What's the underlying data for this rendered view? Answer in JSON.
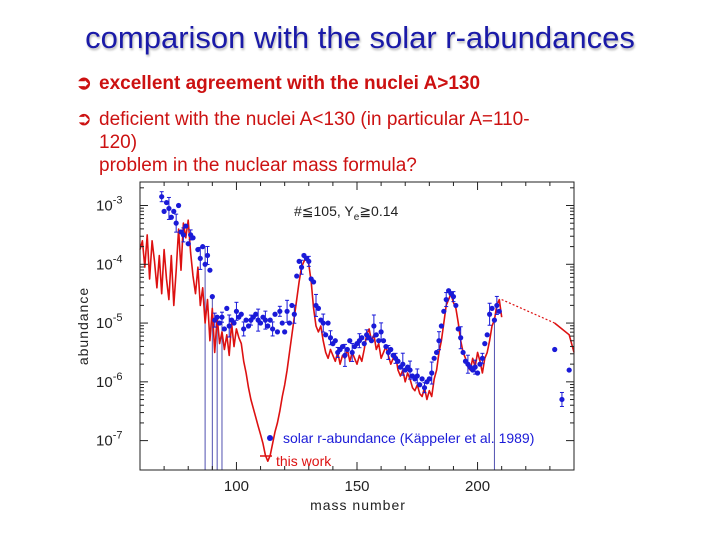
{
  "slide": {
    "title": "comparison with the solar r-abundances",
    "bullet1": "excellent agreement with the nuclei A>130",
    "bullet2_line1": "deficient with the nuclei A<130 (in particular A=110-",
    "bullet2_line2": "120)",
    "bullet2_line3": "problem in the nuclear mass formula?",
    "bullet_icon": "right-arrow-circle-icon"
  },
  "colors": {
    "title": "#1a1aa8",
    "text": "#cc1111",
    "solar": "#1a1ad8",
    "model": "#dd1111"
  },
  "chart_data": {
    "type": "line",
    "xlabel": "mass number",
    "ylabel": "abundance",
    "xlim": [
      60,
      240
    ],
    "ylim_log10": [
      -7.5,
      -2.6
    ],
    "log_y": true,
    "x_ticks": [
      "100",
      "150",
      "200"
    ],
    "y_ticks": [
      "10^-3",
      "10^-4",
      "10^-5",
      "10^-6",
      "10^-7"
    ],
    "annotation": "#≦105, Y",
    "annotation_sub": "e",
    "annotation_tail": "≧0.14",
    "legend_position": "bottom-right",
    "series": [
      {
        "name": "solar r-abundance (Käppeler et al. 1989)",
        "marker": "dot",
        "points": [
          [
            69,
            -2.85
          ],
          [
            70,
            -3.1
          ],
          [
            71,
            -2.95
          ],
          [
            72,
            -3.05
          ],
          [
            73,
            -3.2
          ],
          [
            74,
            -3.1
          ],
          [
            75,
            -3.3
          ],
          [
            76,
            -3.0
          ],
          [
            77,
            -3.45
          ],
          [
            78,
            -3.5
          ],
          [
            79,
            -3.35
          ],
          [
            80,
            -3.65
          ],
          [
            81,
            -3.5
          ],
          [
            82,
            -3.55
          ],
          [
            84,
            -3.75
          ],
          [
            85,
            -3.9
          ],
          [
            86,
            -3.7
          ],
          [
            87,
            -4.0
          ],
          [
            88,
            -3.85
          ],
          [
            89,
            -4.1
          ],
          [
            90,
            -4.55
          ],
          [
            91,
            -4.95
          ],
          [
            92,
            -4.9
          ],
          [
            93,
            -5.0
          ],
          [
            94,
            -4.9
          ],
          [
            95,
            -5.1
          ],
          [
            96,
            -4.75
          ],
          [
            97,
            -5.05
          ],
          [
            98,
            -4.95
          ],
          [
            99,
            -5.0
          ],
          [
            100,
            -4.8
          ],
          [
            101,
            -4.9
          ],
          [
            102,
            -4.85
          ],
          [
            103,
            -5.1
          ],
          [
            104,
            -4.95
          ],
          [
            105,
            -5.05
          ],
          [
            106,
            -4.95
          ],
          [
            107,
            -4.9
          ],
          [
            108,
            -4.85
          ],
          [
            109,
            -4.95
          ],
          [
            110,
            -5.0
          ],
          [
            111,
            -4.9
          ],
          [
            112,
            -4.95
          ],
          [
            113,
            -5.05
          ],
          [
            114,
            -4.95
          ],
          [
            115,
            -5.1
          ],
          [
            116,
            -4.85
          ],
          [
            117,
            -5.15
          ],
          [
            118,
            -4.8
          ],
          [
            119,
            -5.0
          ],
          [
            120,
            -5.15
          ],
          [
            121,
            -4.8
          ],
          [
            122,
            -5.0
          ],
          [
            123,
            -4.7
          ],
          [
            124,
            -4.85
          ],
          [
            125,
            -4.2
          ],
          [
            126,
            -3.95
          ],
          [
            127,
            -4.05
          ],
          [
            128,
            -3.85
          ],
          [
            129,
            -3.9
          ],
          [
            130,
            -3.95
          ],
          [
            131,
            -4.25
          ],
          [
            132,
            -4.3
          ],
          [
            133,
            -4.7
          ],
          [
            134,
            -4.75
          ],
          [
            135,
            -4.95
          ],
          [
            136,
            -5.0
          ],
          [
            137,
            -5.2
          ],
          [
            138,
            -5.0
          ],
          [
            139,
            -5.25
          ],
          [
            140,
            -5.35
          ],
          [
            141,
            -5.3
          ],
          [
            142,
            -5.5
          ],
          [
            143,
            -5.45
          ],
          [
            144,
            -5.4
          ],
          [
            145,
            -5.55
          ],
          [
            146,
            -5.45
          ],
          [
            147,
            -5.3
          ],
          [
            148,
            -5.5
          ],
          [
            149,
            -5.4
          ],
          [
            150,
            -5.35
          ],
          [
            151,
            -5.3
          ],
          [
            152,
            -5.25
          ],
          [
            153,
            -5.35
          ],
          [
            154,
            -5.2
          ],
          [
            155,
            -5.25
          ],
          [
            156,
            -5.3
          ],
          [
            157,
            -5.05
          ],
          [
            158,
            -5.2
          ],
          [
            159,
            -5.3
          ],
          [
            160,
            -5.15
          ],
          [
            161,
            -5.3
          ],
          [
            162,
            -5.4
          ],
          [
            163,
            -5.5
          ],
          [
            164,
            -5.45
          ],
          [
            165,
            -5.55
          ],
          [
            166,
            -5.6
          ],
          [
            167,
            -5.65
          ],
          [
            168,
            -5.75
          ],
          [
            169,
            -5.7
          ],
          [
            170,
            -5.8
          ],
          [
            171,
            -5.75
          ],
          [
            172,
            -5.8
          ],
          [
            173,
            -5.9
          ],
          [
            174,
            -5.95
          ],
          [
            175,
            -5.9
          ],
          [
            176,
            -6.05
          ],
          [
            177,
            -5.95
          ],
          [
            178,
            -6.1
          ],
          [
            179,
            -6.0
          ],
          [
            180,
            -5.95
          ],
          [
            181,
            -5.85
          ],
          [
            182,
            -5.6
          ],
          [
            183,
            -5.5
          ],
          [
            184,
            -5.3
          ],
          [
            185,
            -5.05
          ],
          [
            186,
            -4.8
          ],
          [
            187,
            -4.6
          ],
          [
            188,
            -4.45
          ],
          [
            189,
            -4.5
          ],
          [
            190,
            -4.55
          ],
          [
            191,
            -4.7
          ],
          [
            192,
            -5.1
          ],
          [
            193,
            -5.25
          ],
          [
            194,
            -5.5
          ],
          [
            195,
            -5.65
          ],
          [
            196,
            -5.7
          ],
          [
            197,
            -5.75
          ],
          [
            198,
            -5.8
          ],
          [
            199,
            -5.75
          ],
          [
            200,
            -5.85
          ],
          [
            201,
            -5.7
          ],
          [
            202,
            -5.6
          ],
          [
            203,
            -5.35
          ],
          [
            204,
            -5.2
          ],
          [
            205,
            -4.85
          ],
          [
            206,
            -4.75
          ],
          [
            207,
            -4.95
          ],
          [
            208,
            -4.7
          ],
          [
            209,
            -4.8
          ],
          [
            232,
            -5.45
          ],
          [
            235,
            -6.3
          ],
          [
            238,
            -5.8
          ]
        ]
      },
      {
        "name": "this work",
        "marker": "line",
        "points": [
          [
            60,
            -3.75
          ],
          [
            61,
            -3.6
          ],
          [
            62,
            -4.05
          ],
          [
            63,
            -3.5
          ],
          [
            64,
            -4.25
          ],
          [
            65,
            -3.6
          ],
          [
            66,
            -3.95
          ],
          [
            67,
            -4.4
          ],
          [
            68,
            -3.85
          ],
          [
            69,
            -4.5
          ],
          [
            70,
            -3.75
          ],
          [
            71,
            -4.25
          ],
          [
            72,
            -4.6
          ],
          [
            73,
            -3.85
          ],
          [
            74,
            -4.7
          ],
          [
            75,
            -4.1
          ],
          [
            76,
            -3.4
          ],
          [
            77,
            -4.1
          ],
          [
            78,
            -3.3
          ],
          [
            79,
            -3.55
          ],
          [
            80,
            -3.25
          ],
          [
            81,
            -3.8
          ],
          [
            82,
            -4.2
          ],
          [
            83,
            -4.5
          ],
          [
            84,
            -4.05
          ],
          [
            85,
            -4.7
          ],
          [
            86,
            -4.4
          ],
          [
            87,
            -5.0
          ],
          [
            88,
            -4.6
          ],
          [
            89,
            -5.3
          ],
          [
            90,
            -4.75
          ],
          [
            91,
            -5.5
          ],
          [
            92,
            -4.9
          ],
          [
            93,
            -5.35
          ],
          [
            94,
            -5.15
          ],
          [
            95,
            -5.45
          ],
          [
            96,
            -5.2
          ],
          [
            97,
            -5.55
          ],
          [
            98,
            -5.0
          ],
          [
            99,
            -5.4
          ],
          [
            100,
            -5.1
          ],
          [
            101,
            -5.25
          ],
          [
            102,
            -5.35
          ],
          [
            103,
            -5.65
          ],
          [
            104,
            -5.85
          ],
          [
            105,
            -6.1
          ],
          [
            106,
            -6.3
          ],
          [
            107,
            -6.45
          ],
          [
            108,
            -6.6
          ],
          [
            109,
            -6.75
          ],
          [
            110,
            -6.9
          ],
          [
            111,
            -7.05
          ],
          [
            112,
            -7.25
          ],
          [
            113,
            -7.35
          ],
          [
            114,
            -7.25
          ],
          [
            115,
            -7.05
          ],
          [
            116,
            -6.85
          ],
          [
            117,
            -6.7
          ],
          [
            118,
            -6.5
          ],
          [
            119,
            -6.25
          ],
          [
            120,
            -6.05
          ],
          [
            121,
            -5.8
          ],
          [
            122,
            -5.5
          ],
          [
            123,
            -5.2
          ],
          [
            124,
            -4.9
          ],
          [
            125,
            -4.6
          ],
          [
            126,
            -4.3
          ],
          [
            127,
            -4.05
          ],
          [
            128,
            -3.95
          ],
          [
            129,
            -3.9
          ],
          [
            130,
            -4.0
          ],
          [
            131,
            -4.3
          ],
          [
            132,
            -4.75
          ],
          [
            133,
            -5.05
          ],
          [
            134,
            -5.15
          ],
          [
            135,
            -5.05
          ],
          [
            136,
            -5.3
          ],
          [
            137,
            -5.5
          ],
          [
            138,
            -5.6
          ],
          [
            139,
            -5.45
          ],
          [
            140,
            -5.55
          ],
          [
            141,
            -5.65
          ],
          [
            142,
            -5.5
          ],
          [
            143,
            -5.7
          ],
          [
            144,
            -5.55
          ],
          [
            145,
            -5.6
          ],
          [
            146,
            -5.45
          ],
          [
            147,
            -5.65
          ],
          [
            148,
            -5.5
          ],
          [
            149,
            -5.6
          ],
          [
            150,
            -5.7
          ],
          [
            151,
            -5.55
          ],
          [
            152,
            -5.65
          ],
          [
            153,
            -5.45
          ],
          [
            154,
            -5.2
          ],
          [
            155,
            -5.1
          ],
          [
            156,
            -5.3
          ],
          [
            157,
            -5.2
          ],
          [
            158,
            -5.45
          ],
          [
            159,
            -5.35
          ],
          [
            160,
            -5.6
          ],
          [
            161,
            -5.5
          ],
          [
            162,
            -5.4
          ],
          [
            163,
            -5.55
          ],
          [
            164,
            -5.7
          ],
          [
            165,
            -5.6
          ],
          [
            166,
            -5.55
          ],
          [
            167,
            -5.8
          ],
          [
            168,
            -5.9
          ],
          [
            169,
            -5.8
          ],
          [
            170,
            -6.0
          ],
          [
            171,
            -5.85
          ],
          [
            172,
            -5.95
          ],
          [
            173,
            -6.1
          ],
          [
            174,
            -6.15
          ],
          [
            175,
            -6.05
          ],
          [
            176,
            -6.2
          ],
          [
            177,
            -6.25
          ],
          [
            178,
            -6.1
          ],
          [
            179,
            -6.3
          ],
          [
            180,
            -6.15
          ],
          [
            181,
            -6.25
          ],
          [
            182,
            -5.95
          ],
          [
            183,
            -5.8
          ],
          [
            184,
            -5.5
          ],
          [
            185,
            -5.3
          ],
          [
            186,
            -5.0
          ],
          [
            187,
            -4.7
          ],
          [
            188,
            -4.6
          ],
          [
            189,
            -4.5
          ],
          [
            190,
            -4.65
          ],
          [
            191,
            -4.75
          ],
          [
            192,
            -5.0
          ],
          [
            193,
            -5.3
          ],
          [
            194,
            -5.5
          ],
          [
            195,
            -5.6
          ],
          [
            196,
            -5.75
          ],
          [
            197,
            -5.8
          ],
          [
            198,
            -5.6
          ],
          [
            199,
            -5.75
          ],
          [
            200,
            -5.5
          ],
          [
            201,
            -5.65
          ],
          [
            202,
            -5.85
          ],
          [
            203,
            -5.6
          ],
          [
            204,
            -5.5
          ],
          [
            205,
            -5.3
          ],
          [
            206,
            -5.05
          ],
          [
            207,
            -4.95
          ],
          [
            208,
            -4.7
          ],
          [
            209,
            -4.6
          ],
          [
            210,
            -4.9
          ]
        ],
        "extension_dotted": [
          [
            210,
            -4.6
          ],
          [
            232,
            -5.0
          ]
        ],
        "extension_solid": [
          [
            232,
            -5.0
          ],
          [
            238,
            -5.2
          ],
          [
            240,
            -5.5
          ]
        ]
      }
    ]
  }
}
